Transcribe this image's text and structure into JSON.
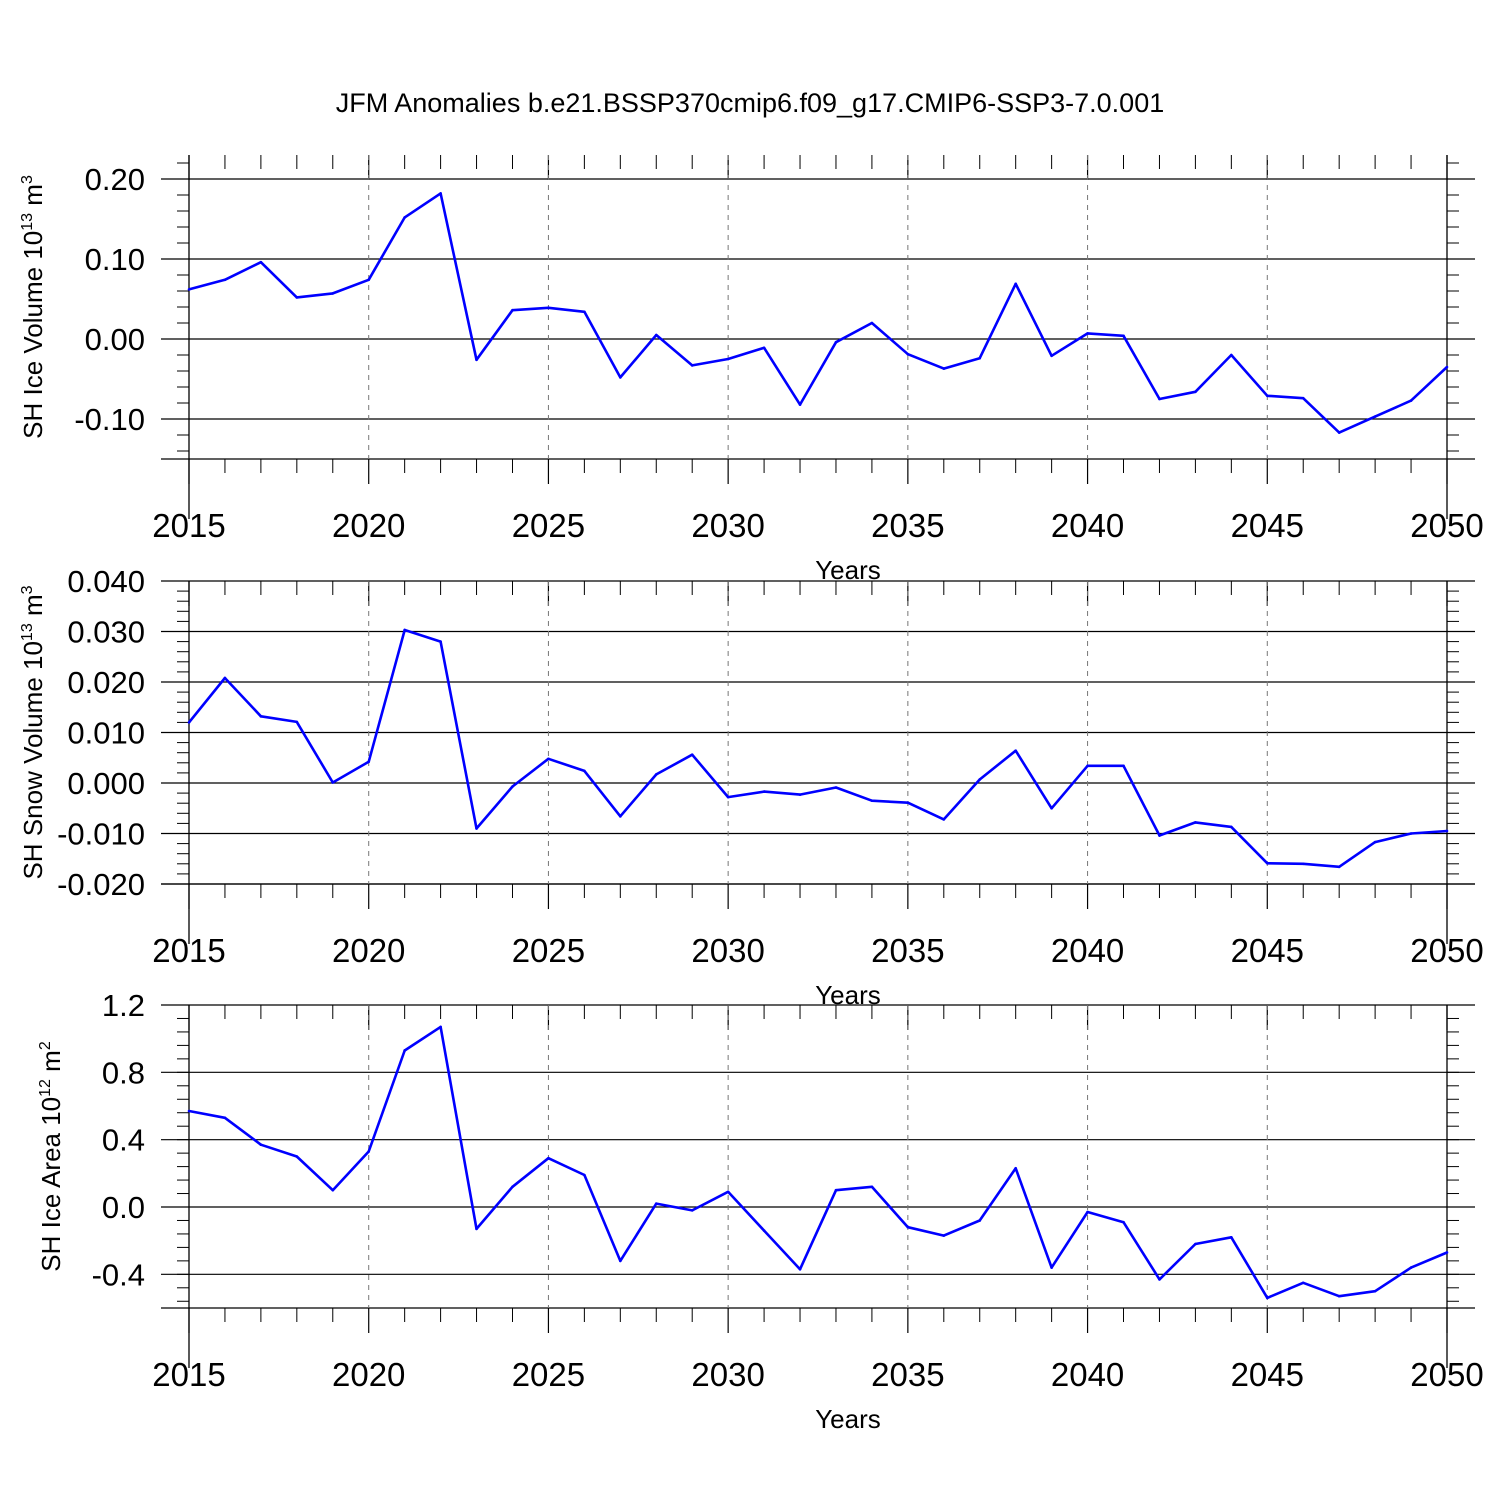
{
  "title": "JFM Anomalies b.e21.BSSP370cmip6.f09_g17.CMIP6-SSP3-7.0.001",
  "line_color": "#0000ff",
  "chart_data": [
    {
      "type": "line",
      "ylabel_main": "SH Ice Volume 10",
      "ylabel_exp": "13",
      "ylabel_unit": " m",
      "ylabel_unit_exp": "3",
      "xlabel": "Years",
      "xlim": [
        2015,
        2050
      ],
      "ylim": [
        -0.15,
        0.23
      ],
      "xticks": [
        2015,
        2020,
        2025,
        2030,
        2035,
        2040,
        2045,
        2050
      ],
      "xtick_labels": [
        "2015",
        "2020",
        "2025",
        "2030",
        "2035",
        "2040",
        "2045",
        "2050"
      ],
      "yticks": [
        -0.1,
        0.0,
        0.1,
        0.2
      ],
      "ytick_labels": [
        "-0.10",
        "0.00",
        "0.10",
        "0.20"
      ],
      "series": [
        {
          "name": "SH Ice Volume",
          "x": [
            2015,
            2016,
            2017,
            2018,
            2019,
            2020,
            2021,
            2022,
            2023,
            2024,
            2025,
            2026,
            2027,
            2028,
            2029,
            2030,
            2031,
            2032,
            2033,
            2034,
            2035,
            2036,
            2037,
            2038,
            2039,
            2040,
            2041,
            2042,
            2043,
            2044,
            2045,
            2046,
            2047,
            2048,
            2049,
            2050
          ],
          "y": [
            0.062,
            0.074,
            0.096,
            0.052,
            0.057,
            0.074,
            0.152,
            0.182,
            -0.026,
            0.036,
            0.039,
            0.034,
            -0.048,
            0.005,
            -0.033,
            -0.025,
            -0.011,
            -0.082,
            -0.004,
            0.02,
            -0.019,
            -0.037,
            -0.024,
            0.069,
            -0.021,
            0.007,
            0.004,
            -0.075,
            -0.066,
            -0.02,
            -0.071,
            -0.074,
            -0.117,
            -0.097,
            -0.077,
            -0.035
          ]
        }
      ]
    },
    {
      "type": "line",
      "ylabel_main": "SH Snow Volume 10",
      "ylabel_exp": "13",
      "ylabel_unit": " m",
      "ylabel_unit_exp": "3",
      "xlabel": "Years",
      "xlim": [
        2015,
        2050
      ],
      "ylim": [
        -0.02,
        0.04
      ],
      "xticks": [
        2015,
        2020,
        2025,
        2030,
        2035,
        2040,
        2045,
        2050
      ],
      "xtick_labels": [
        "2015",
        "2020",
        "2025",
        "2030",
        "2035",
        "2040",
        "2045",
        "2050"
      ],
      "yticks": [
        -0.02,
        -0.01,
        0.0,
        0.01,
        0.02,
        0.03,
        0.04
      ],
      "ytick_labels": [
        "-0.020",
        "-0.010",
        "0.000",
        "0.010",
        "0.020",
        "0.030",
        "0.040"
      ],
      "series": [
        {
          "name": "SH Snow Volume",
          "x": [
            2015,
            2016,
            2017,
            2018,
            2019,
            2020,
            2021,
            2022,
            2023,
            2024,
            2025,
            2026,
            2027,
            2028,
            2029,
            2030,
            2031,
            2032,
            2033,
            2034,
            2035,
            2036,
            2037,
            2038,
            2039,
            2040,
            2041,
            2042,
            2043,
            2044,
            2045,
            2046,
            2047,
            2048,
            2049,
            2050
          ],
          "y": [
            0.012,
            0.0208,
            0.0132,
            0.0121,
            0.0001,
            0.0042,
            0.0303,
            0.028,
            -0.009,
            -0.0007,
            0.0048,
            0.0024,
            -0.0066,
            0.0017,
            0.0056,
            -0.0028,
            -0.0017,
            -0.0023,
            -0.0009,
            -0.0035,
            -0.0039,
            -0.0072,
            0.0007,
            0.0064,
            -0.005,
            0.0034,
            0.0034,
            -0.0104,
            -0.0078,
            -0.0087,
            -0.0159,
            -0.016,
            -0.0166,
            -0.0117,
            -0.01,
            -0.0095
          ]
        }
      ]
    },
    {
      "type": "line",
      "ylabel_main": "SH Ice Area 10",
      "ylabel_exp": "12",
      "ylabel_unit": " m",
      "ylabel_unit_exp": "2",
      "xlabel": "Years",
      "xlim": [
        2015,
        2050
      ],
      "ylim": [
        -0.6,
        1.2
      ],
      "xticks": [
        2015,
        2020,
        2025,
        2030,
        2035,
        2040,
        2045,
        2050
      ],
      "xtick_labels": [
        "2015",
        "2020",
        "2025",
        "2030",
        "2035",
        "2040",
        "2045",
        "2050"
      ],
      "yticks": [
        -0.4,
        0.0,
        0.4,
        0.8,
        1.2
      ],
      "ytick_labels": [
        "-0.4",
        "0.0",
        "0.4",
        "0.8",
        "1.2"
      ],
      "series": [
        {
          "name": "SH Ice Area",
          "x": [
            2015,
            2016,
            2017,
            2018,
            2019,
            2020,
            2021,
            2022,
            2023,
            2024,
            2025,
            2026,
            2027,
            2028,
            2029,
            2030,
            2031,
            2032,
            2033,
            2034,
            2035,
            2036,
            2037,
            2038,
            2039,
            2040,
            2041,
            2042,
            2043,
            2044,
            2045,
            2046,
            2047,
            2048,
            2049,
            2050
          ],
          "y": [
            0.57,
            0.53,
            0.37,
            0.3,
            0.1,
            0.33,
            0.93,
            1.07,
            -0.13,
            0.12,
            0.29,
            0.19,
            -0.32,
            0.02,
            -0.02,
            0.09,
            -0.14,
            -0.37,
            0.1,
            0.12,
            -0.12,
            -0.17,
            -0.08,
            0.23,
            -0.36,
            -0.03,
            -0.09,
            -0.43,
            -0.22,
            -0.18,
            -0.54,
            -0.45,
            -0.53,
            -0.5,
            -0.36,
            -0.27
          ]
        }
      ]
    }
  ]
}
